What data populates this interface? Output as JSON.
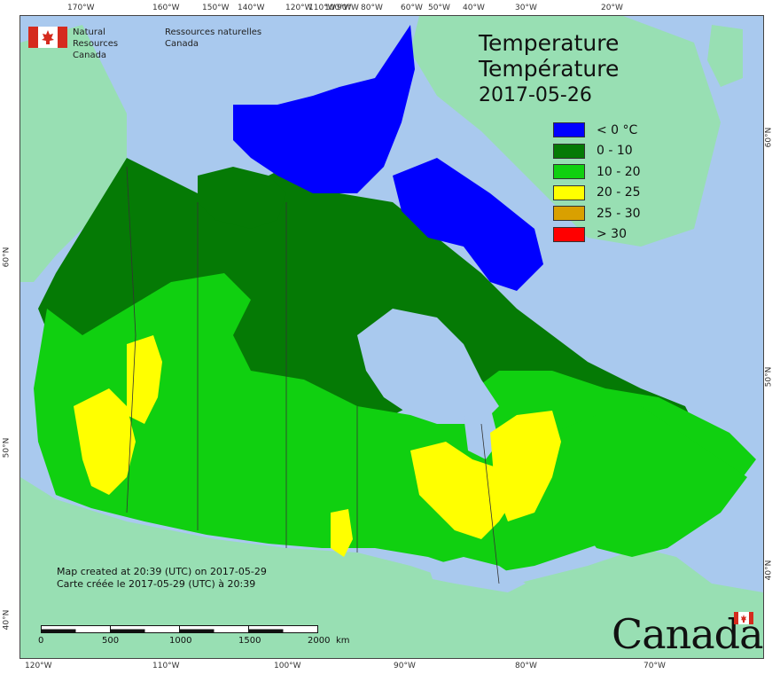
{
  "logo": {
    "org_en_1": "Natural Resources",
    "org_en_2": "Canada",
    "org_fr_1": "Ressources naturelles",
    "org_fr_2": "Canada"
  },
  "title": {
    "en": "Temperature",
    "fr": "Température",
    "date": "2017-05-26"
  },
  "legend": [
    {
      "label": "< 0 °C",
      "color": "#0000ff"
    },
    {
      "label": "0 - 10",
      "color": "#057a05"
    },
    {
      "label": "10 - 20",
      "color": "#10d010"
    },
    {
      "label": "20 - 25",
      "color": "#ffff00"
    },
    {
      "label": "25 - 30",
      "color": "#d9a000"
    },
    {
      "label": "> 30",
      "color": "#ff0000"
    }
  ],
  "created": {
    "en": "Map created at 20:39 (UTC) on 2017-05-29",
    "fr": "Carte créée le 2017-05-29 (UTC) à 20:39"
  },
  "scale": {
    "ticks": [
      "0",
      "500",
      "1000",
      "1500",
      "2000"
    ],
    "unit": "km"
  },
  "wordmark": "Canada",
  "graticule": {
    "top": [
      "170°W",
      "160°W",
      "150°W",
      "140°W",
      "120°W",
      "110°W",
      "100°W",
      "90°W",
      "80°W",
      "60°W",
      "50°W",
      "40°W",
      "30°W",
      "20°W"
    ],
    "bottom": [
      "120°W",
      "110°W",
      "100°W",
      "90°W",
      "80°W",
      "70°W"
    ],
    "left": [
      "60°N",
      "50°N",
      "40°N"
    ],
    "right": [
      "60°N",
      "50°N",
      "40°N"
    ]
  },
  "colors": {
    "ocean": "#a9c9ee",
    "foreign_land": "#98dfb3",
    "lake": "#a9c9ee",
    "border": "#333333"
  }
}
